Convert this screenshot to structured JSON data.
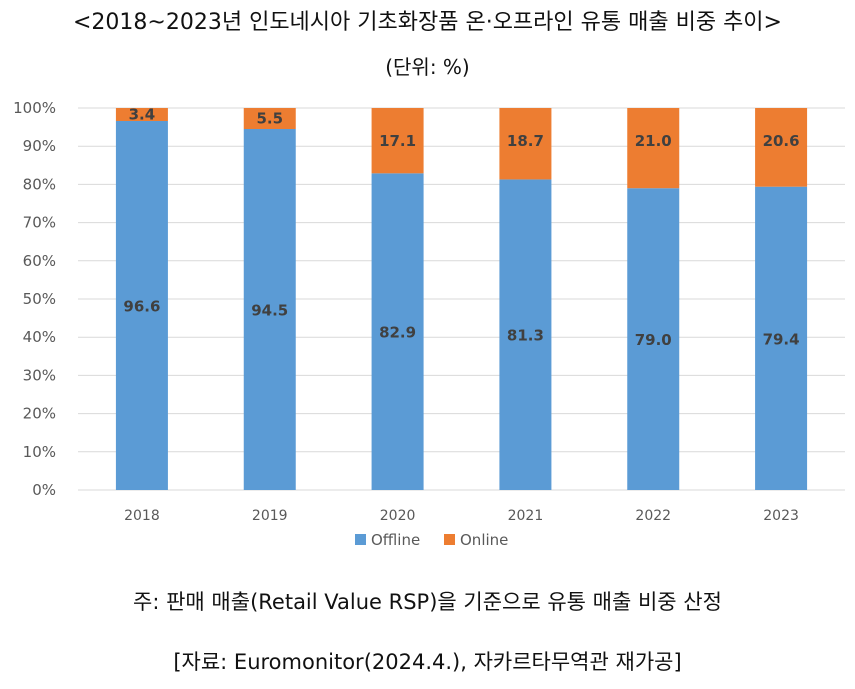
{
  "header": {
    "title": "<2018~2023년 인도네시아 기초화장품 온·오프라인 유통 매출 비중 추이>",
    "unit": "(단위: %)"
  },
  "footer": {
    "note": "주: 판매 매출(Retail Value RSP)을 기준으로 유통 매출 비중 산정",
    "source": "[자료: Euromonitor(2024.4.), 자카르타무역관 재가공]"
  },
  "colors": {
    "offline": "#5b9bd5",
    "online": "#ed7d31",
    "grid": "#d9d9d9",
    "tick_text": "#595959",
    "label_text": "#404040"
  },
  "chart_data": {
    "type": "bar",
    "stacked": true,
    "categories": [
      "2018",
      "2019",
      "2020",
      "2021",
      "2022",
      "2023"
    ],
    "series": [
      {
        "name": "Offline",
        "values": [
          96.6,
          94.5,
          82.9,
          81.3,
          79.0,
          79.4
        ],
        "labels": [
          "96.6",
          "94.5",
          "82.9",
          "81.3",
          "79.0",
          "79.4"
        ]
      },
      {
        "name": "Online",
        "values": [
          3.4,
          5.5,
          17.1,
          18.7,
          21.0,
          20.6
        ],
        "labels": [
          "3.4",
          "5.5",
          "17.1",
          "18.7",
          "21.0",
          "20.6"
        ]
      }
    ],
    "yticks": [
      "0%",
      "10%",
      "20%",
      "30%",
      "40%",
      "50%",
      "60%",
      "70%",
      "80%",
      "90%",
      "100%"
    ],
    "ylim": [
      0,
      100
    ],
    "grid": true,
    "legend": "bottom-center"
  }
}
